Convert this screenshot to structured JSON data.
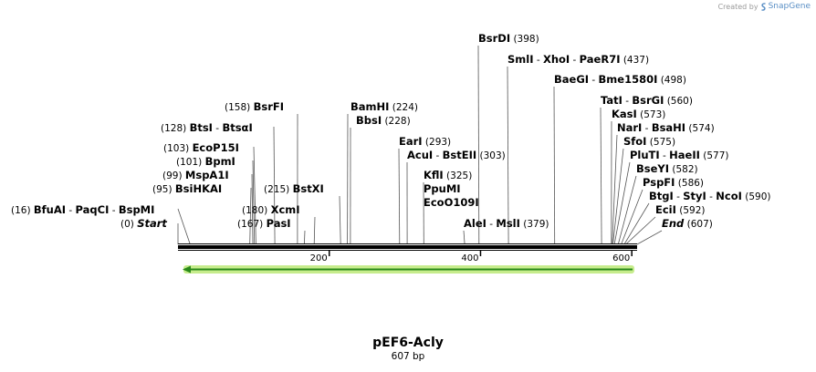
{
  "credit": {
    "prefix": "Created by",
    "brand": "SnapGene",
    "logo_icon": "snapgene-logo-icon"
  },
  "plasmid": {
    "name": "pEF6-Acly",
    "length_label": "607 bp",
    "length": 607
  },
  "axis": {
    "ticks": [
      200,
      400,
      600
    ]
  },
  "colors": {
    "feature_arrow": "#2a8a1a",
    "feature_glow": "#c6ec8c",
    "backbone": "#000000",
    "leader": "#555555"
  },
  "labels": [
    {
      "text": "(16)",
      "names": [
        "BfuAI",
        "PaqCI",
        "BspMI"
      ],
      "site": 16
    },
    {
      "text": "(0)",
      "names": [
        "Start"
      ],
      "italic": true,
      "site": 0
    },
    {
      "text": "(95)",
      "names": [
        "BsiHKAI"
      ],
      "site": 95
    },
    {
      "text": "(99)",
      "names": [
        "MspA1I"
      ],
      "site": 99
    },
    {
      "text": "(101)",
      "names": [
        "BpmI"
      ],
      "site": 101
    },
    {
      "text": "(103)",
      "names": [
        "EcoP15I"
      ],
      "site": 103
    },
    {
      "text": "(128)",
      "names": [
        "BtsI",
        "BtsαI"
      ],
      "site": 128
    },
    {
      "text": "(158)",
      "names": [
        "BsrFI"
      ],
      "site": 158
    },
    {
      "text": "(180)",
      "names": [
        "XcmI"
      ],
      "site": 180
    },
    {
      "text": "(167)",
      "names": [
        "PasI"
      ],
      "site": 167
    },
    {
      "text": "(215)",
      "names": [
        "BstXI"
      ],
      "site": 215
    },
    {
      "text": "(224)",
      "names": [
        "BamHI"
      ],
      "site": 224
    },
    {
      "text": "(228)",
      "names": [
        "BbsI"
      ],
      "site": 228
    },
    {
      "text": "(293)",
      "names": [
        "EarI"
      ],
      "site": 293
    },
    {
      "text": "(303)",
      "names": [
        "AcuI",
        "BstEII"
      ],
      "site": 303
    },
    {
      "text": "(325)",
      "names": [
        "KflI"
      ],
      "site": 325
    },
    {
      "text": "",
      "names": [
        "PpuMI"
      ],
      "site": 325
    },
    {
      "text": "",
      "names": [
        "EcoO109I"
      ],
      "site": 325
    },
    {
      "text": "(398)",
      "names": [
        "BsrDI"
      ],
      "site": 398
    },
    {
      "text": "(379)",
      "names": [
        "AleI",
        "MslI"
      ],
      "site": 379
    },
    {
      "text": "(437)",
      "names": [
        "SmlI",
        "XhoI",
        "PaeR7I"
      ],
      "site": 437
    },
    {
      "text": "(498)",
      "names": [
        "BaeGI",
        "Bme1580I"
      ],
      "site": 498
    },
    {
      "text": "(560)",
      "names": [
        "TatI",
        "BsrGI"
      ],
      "site": 560
    },
    {
      "text": "(573)",
      "names": [
        "KasI"
      ],
      "site": 573
    },
    {
      "text": "(574)",
      "names": [
        "NarI",
        "BsaHI"
      ],
      "site": 574
    },
    {
      "text": "(575)",
      "names": [
        "SfoI"
      ],
      "site": 575
    },
    {
      "text": "(577)",
      "names": [
        "PluTI",
        "HaeII"
      ],
      "site": 577
    },
    {
      "text": "(582)",
      "names": [
        "BseYI"
      ],
      "site": 582
    },
    {
      "text": "(586)",
      "names": [
        "PspFI"
      ],
      "site": 586
    },
    {
      "text": "(590)",
      "names": [
        "BtgI",
        "StyI",
        "NcoI"
      ],
      "site": 590
    },
    {
      "text": "(592)",
      "names": [
        "EciI"
      ],
      "site": 592
    },
    {
      "text": "(607)",
      "names": [
        "End"
      ],
      "italic": true,
      "site": 607
    }
  ]
}
